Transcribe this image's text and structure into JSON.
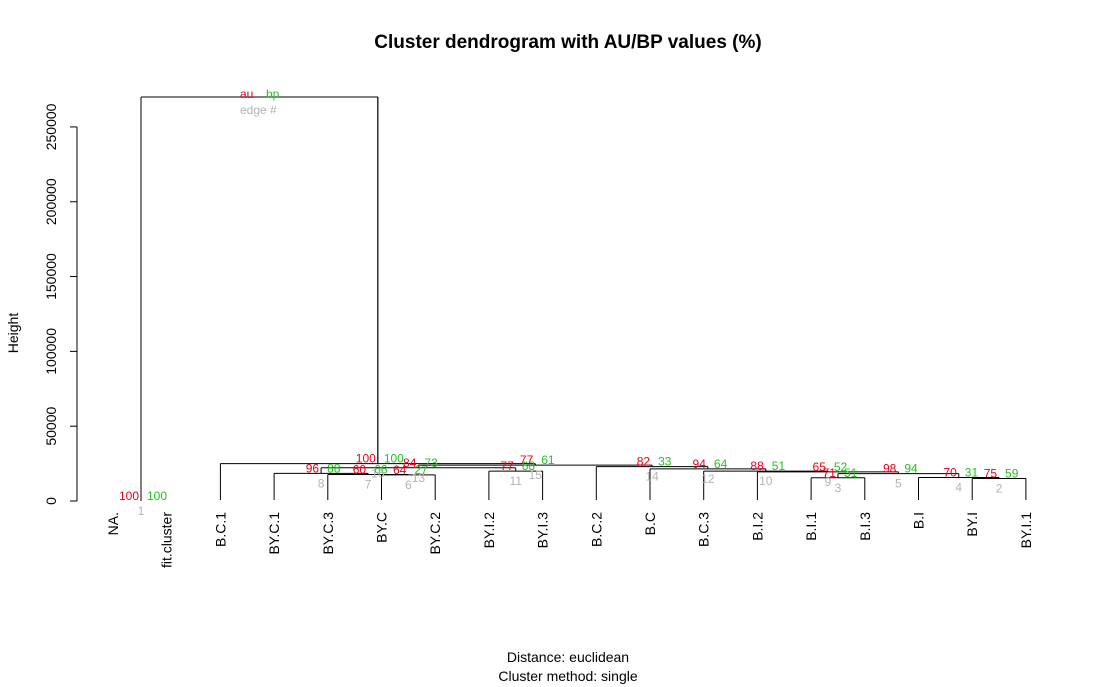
{
  "chart_data": {
    "type": "dendrogram",
    "title": "Cluster dendrogram with AU/BP values (%)",
    "ylabel": "Height",
    "ylim": [
      0,
      280000
    ],
    "yticks": [
      0,
      50000,
      100000,
      150000,
      200000,
      250000
    ],
    "ytick_labels": [
      "0",
      "50000",
      "100000",
      "150000",
      "200000",
      "250000"
    ],
    "leaves": [
      "NA.",
      "fit.cluster",
      "B.C.1",
      "BY.C.1",
      "BY.C.3",
      "BY.C",
      "BY.C.2",
      "BY.I.2",
      "BY.I.3",
      "B.C.2",
      "B.C",
      "B.C.3",
      "B.I.2",
      "B.I.1",
      "B.I.3",
      "B.I",
      "BY.I",
      "BY.I.1"
    ],
    "merges": [
      {
        "edge": 2,
        "left": "L16",
        "right": "L17",
        "height": 15000,
        "au": 75,
        "bp": 59
      },
      {
        "edge": 3,
        "left": "L13",
        "right": "L14",
        "height": 15500,
        "au": 71,
        "bp": 51
      },
      {
        "edge": 4,
        "left": "L15",
        "right": "M2",
        "height": 15700,
        "au": 70,
        "bp": 31
      },
      {
        "edge": 5,
        "left": "M3",
        "right": "M4",
        "height": 18300,
        "au": 98,
        "bp": 94
      },
      {
        "edge": 6,
        "left": "L5",
        "right": "L6",
        "height": 17500,
        "au": 64,
        "bp": 27
      },
      {
        "edge": 7,
        "left": "L4",
        "right": "M6",
        "height": 17700,
        "au": 60,
        "bp": 66
      },
      {
        "edge": 8,
        "left": "L3",
        "right": "M7",
        "height": 18500,
        "au": 96,
        "bp": 88
      },
      {
        "edge": 9,
        "left": "L12",
        "right": "M5",
        "height": 19000,
        "au": 65,
        "bp": 52
      },
      {
        "edge": 10,
        "left": "M9",
        "right": "M9b",
        "height": 19500,
        "au": 88,
        "bp": 51
      },
      {
        "edge": 11,
        "left": "L7",
        "right": "L8",
        "height": 20000,
        "au": 77,
        "bp": 68
      },
      {
        "edge": 12,
        "left": "L10",
        "right": "L11",
        "height": 21500,
        "au": 94,
        "bp": 64
      },
      {
        "edge": 13,
        "left": "M8",
        "right": "M11",
        "height": 22200,
        "au": 84,
        "bp": 73
      },
      {
        "edge": 14,
        "left": "L9",
        "right": "M12",
        "height": 23000,
        "au": 82,
        "bp": 33
      },
      {
        "edge": 15,
        "left": "M13",
        "right": "M14",
        "height": 24000,
        "au": 77,
        "bp": 61
      },
      {
        "edge": 16,
        "left": "L2",
        "right": "M15",
        "height": 25000,
        "au": 100,
        "bp": 100
      },
      {
        "edge": 1,
        "left": "L0",
        "right": "L1",
        "height": 0,
        "au": 100,
        "bp": 100
      },
      {
        "edge": 0,
        "left": "M1",
        "right": "M16",
        "height": 270000,
        "au": null,
        "bp": null
      }
    ],
    "legend": {
      "au": "au",
      "bp": "bp",
      "edge": "edge #"
    },
    "colors": {
      "au": "#e8001c",
      "bp": "#22c41c",
      "edge": "#b3b3b3",
      "line": "#000000"
    }
  },
  "caption": {
    "distance": "Distance:  euclidean",
    "method": "Cluster method: single"
  }
}
